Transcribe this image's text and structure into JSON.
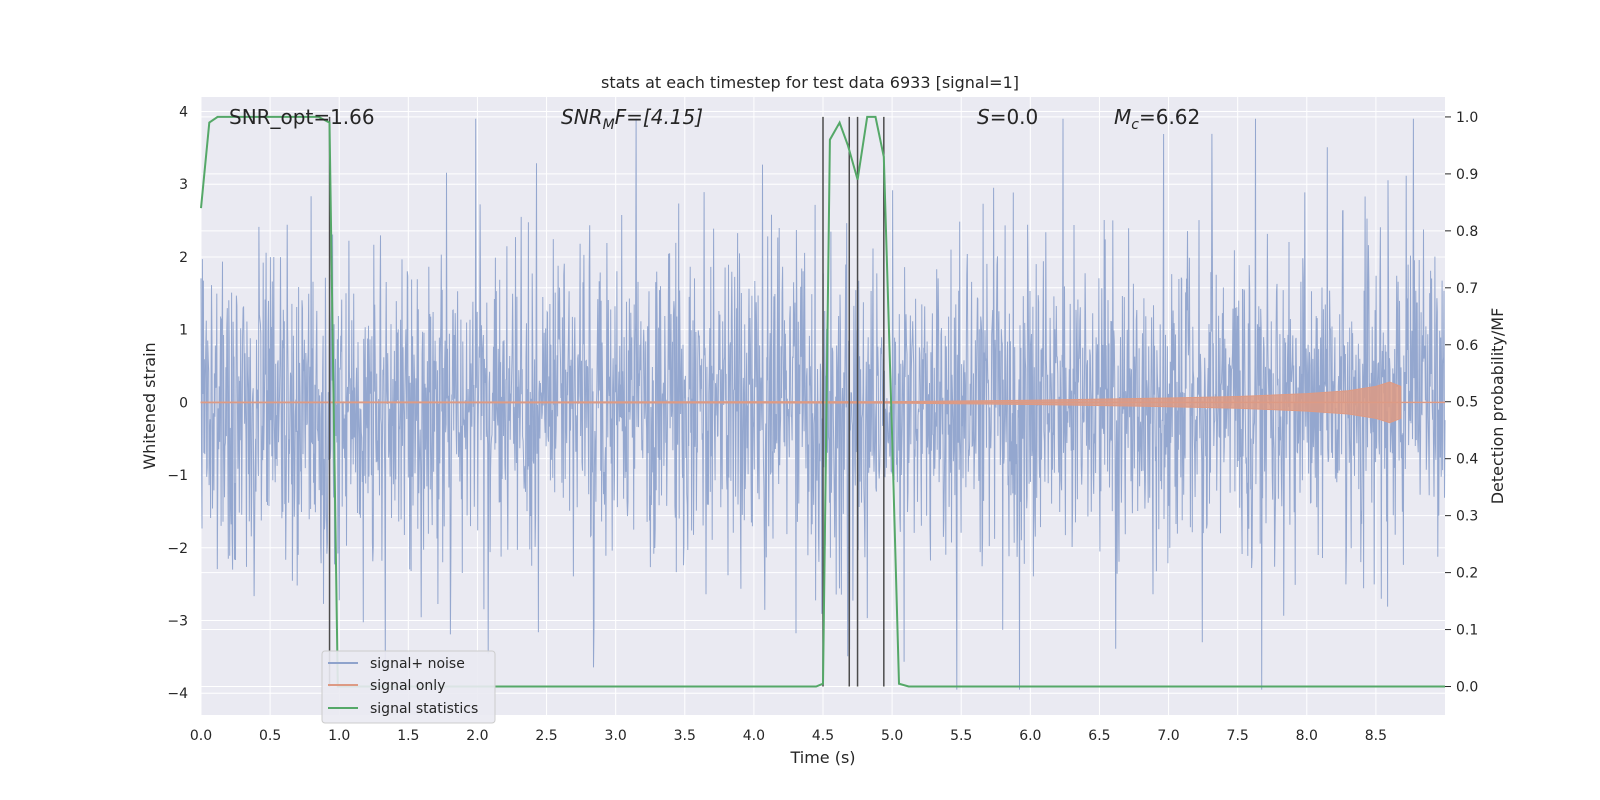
{
  "chart_data": {
    "type": "line",
    "title": "stats at each timestep for test data 6933 [signal=1]",
    "xlabel": "Time (s)",
    "ylabel": "Whitened strain",
    "y2label": "Detection probability/MF",
    "xlim": [
      0,
      9
    ],
    "ylim": [
      -4.3,
      4.2
    ],
    "y2lim": [
      -0.05,
      1.035
    ],
    "x_ticks": [
      0.0,
      0.5,
      1.0,
      1.5,
      2.0,
      2.5,
      3.0,
      3.5,
      4.0,
      4.5,
      5.0,
      5.5,
      6.0,
      6.5,
      7.0,
      7.5,
      8.0,
      8.5
    ],
    "x_tick_labels": [
      "0.0",
      "0.5",
      "1.0",
      "1.5",
      "2.0",
      "2.5",
      "3.0",
      "3.5",
      "4.0",
      "4.5",
      "5.0",
      "5.5",
      "6.0",
      "6.5",
      "7.0",
      "7.5",
      "8.0",
      "8.5"
    ],
    "y_ticks": [
      4,
      3,
      2,
      1,
      0,
      -1,
      -2,
      -3,
      -4
    ],
    "y_tick_labels": [
      "4",
      "3",
      "2",
      "1",
      "0",
      "−1",
      "−2",
      "−3",
      "−4"
    ],
    "y2_ticks": [
      1.0,
      0.9,
      0.8,
      0.7,
      0.6,
      0.5,
      0.4,
      0.3,
      0.2,
      0.1,
      0.0
    ],
    "y2_tick_labels": [
      "1.0",
      "0.9",
      "0.8",
      "0.7",
      "0.6",
      "0.5",
      "0.4",
      "0.3",
      "0.2",
      "0.1",
      "0.0"
    ],
    "grid": true,
    "legend_placement": "lower-left",
    "legend": [
      {
        "name": "signal+ noise",
        "color": "#8fa3cc"
      },
      {
        "name": "signal only",
        "color": "#dd9a84"
      },
      {
        "name": "signal statistics",
        "color": "#55a868"
      }
    ],
    "annotations": {
      "snr_opt": "SNR_opt=1.66",
      "snr_mf_main": "SNR",
      "snr_mf_sub": "M",
      "snr_mf_rest": "F=[4.15]",
      "s_main": "S",
      "s_rest": "=0.0",
      "mc_main": "M",
      "mc_sub": "c",
      "mc_rest": "=6.62"
    },
    "series": [
      {
        "name": "signal+ noise",
        "axis": "left",
        "color": "#8fa3cc",
        "style": "dense noise, amplitude about ±2 with spikes to about ±3.9"
      },
      {
        "name": "signal only",
        "axis": "left",
        "color": "#dd9a84",
        "x": [
          0.0,
          5.0,
          6.0,
          7.0,
          7.5,
          8.0,
          8.3,
          8.5,
          8.6,
          8.68
        ],
        "envelope": [
          0.005,
          0.01,
          0.03,
          0.06,
          0.08,
          0.12,
          0.16,
          0.22,
          0.28,
          0.22
        ]
      },
      {
        "name": "signal statistics",
        "axis": "right",
        "color": "#55a868",
        "x": [
          0.0,
          0.06,
          0.12,
          0.5,
          0.7,
          0.85,
          0.93,
          0.99,
          1.05,
          1.2,
          2.0,
          3.0,
          4.0,
          4.45,
          4.5,
          4.55,
          4.62,
          4.68,
          4.75,
          4.82,
          4.88,
          4.94,
          5.0,
          5.05,
          5.12,
          6.0,
          7.0,
          8.0,
          9.0
        ],
        "y": [
          0.84,
          0.99,
          1.0,
          1.0,
          1.0,
          1.0,
          0.99,
          0.0,
          0.0,
          0.0,
          0.0,
          0.0,
          0.0,
          0.0,
          0.005,
          0.96,
          0.99,
          0.95,
          0.89,
          1.0,
          1.0,
          0.93,
          0.44,
          0.005,
          0.0,
          0.0,
          0.0,
          0.0,
          0.0
        ]
      }
    ],
    "vertical_lines": [
      0.93,
      4.5,
      4.69,
      4.75,
      4.94
    ]
  }
}
